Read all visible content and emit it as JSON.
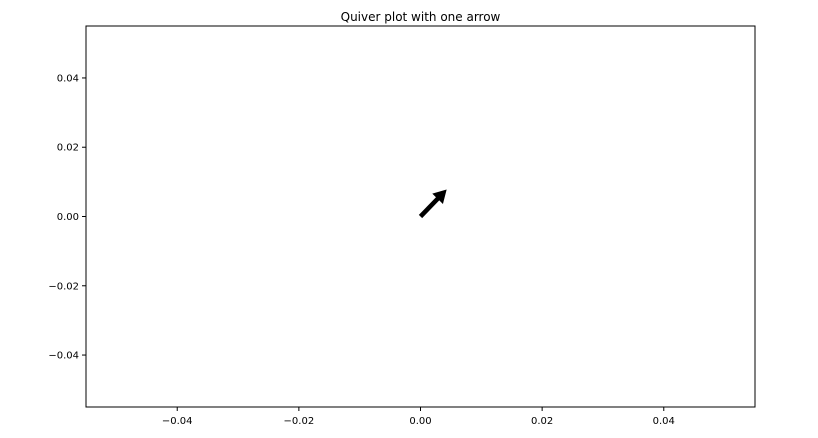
{
  "chart_data": {
    "type": "quiver",
    "title": "Quiver plot with one arrow",
    "xlabel": "",
    "ylabel": "",
    "xlim": [
      -0.055,
      0.055
    ],
    "ylim": [
      -0.055,
      0.055
    ],
    "grid": false,
    "x_ticks": [
      {
        "value": -0.04,
        "label": "−0.04"
      },
      {
        "value": -0.02,
        "label": "−0.02"
      },
      {
        "value": 0.0,
        "label": "0.00"
      },
      {
        "value": 0.02,
        "label": "0.02"
      },
      {
        "value": 0.04,
        "label": "0.04"
      }
    ],
    "y_ticks": [
      {
        "value": 0.04,
        "label": "0.04"
      },
      {
        "value": 0.02,
        "label": "0.02"
      },
      {
        "value": 0.0,
        "label": "0.00"
      },
      {
        "value": -0.02,
        "label": "−0.02"
      },
      {
        "value": -0.04,
        "label": "−0.04"
      }
    ],
    "arrows": [
      {
        "x": 0,
        "y": 0,
        "u": 1,
        "v": 1,
        "tip_x": 0.0043,
        "tip_y": 0.0078
      }
    ],
    "colors": {
      "arrow": "#000000",
      "axes": "#000000",
      "background": "#ffffff"
    }
  }
}
